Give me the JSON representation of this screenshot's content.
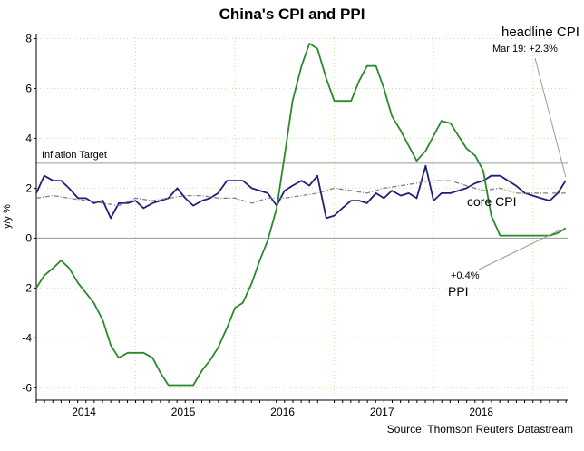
{
  "chart_data": {
    "type": "line",
    "title": "China's CPI and PPI",
    "ylabel": "y/y %",
    "xlabel": "",
    "ylim": [
      -6.5,
      8.2
    ],
    "yticks": [
      -6,
      -4,
      -2,
      0,
      2,
      4,
      6,
      8
    ],
    "x_start": 2013.62,
    "x_end": 2018.97,
    "xticks": [
      {
        "label": "2014",
        "pos": 2014.1
      },
      {
        "label": "2015",
        "pos": 2015.1
      },
      {
        "label": "2016",
        "pos": 2016.1
      },
      {
        "label": "2017",
        "pos": 2017.1
      },
      {
        "label": "2018",
        "pos": 2018.1
      }
    ],
    "year_gridlines": [
      2014.62,
      2015.62,
      2016.62,
      2017.62,
      2018.62
    ],
    "series": [
      {
        "name": "headline CPI",
        "color": "#1f1f7a",
        "style": "solid",
        "x": [
          2013.62,
          2013.7,
          2013.79,
          2013.87,
          2013.95,
          2014.04,
          2014.12,
          2014.2,
          2014.29,
          2014.37,
          2014.45,
          2014.54,
          2014.62,
          2014.7,
          2014.79,
          2014.87,
          2014.95,
          2015.04,
          2015.12,
          2015.2,
          2015.29,
          2015.37,
          2015.45,
          2015.54,
          2015.62,
          2015.7,
          2015.79,
          2015.87,
          2015.95,
          2016.04,
          2016.12,
          2016.2,
          2016.29,
          2016.37,
          2016.45,
          2016.54,
          2016.62,
          2016.7,
          2016.79,
          2016.87,
          2016.95,
          2017.04,
          2017.12,
          2017.2,
          2017.29,
          2017.37,
          2017.45,
          2017.54,
          2017.62,
          2017.7,
          2017.79,
          2017.87,
          2017.95,
          2018.04,
          2018.12,
          2018.2,
          2018.29,
          2018.37,
          2018.45,
          2018.54,
          2018.62,
          2018.7,
          2018.79,
          2018.87,
          2018.95
        ],
        "values": [
          1.8,
          2.5,
          2.3,
          2.3,
          2.0,
          1.6,
          1.6,
          1.4,
          1.5,
          0.8,
          1.4,
          1.4,
          1.5,
          1.2,
          1.4,
          1.5,
          1.6,
          2.0,
          1.6,
          1.3,
          1.5,
          1.6,
          1.8,
          2.3,
          2.3,
          2.3,
          2.0,
          1.9,
          1.8,
          1.3,
          1.9,
          2.1,
          2.3,
          2.1,
          2.5,
          0.8,
          0.9,
          1.2,
          1.5,
          1.5,
          1.4,
          1.8,
          1.6,
          1.9,
          1.7,
          1.8,
          1.6,
          2.9,
          1.5,
          1.8,
          1.8,
          1.9,
          2.0,
          2.2,
          2.3,
          2.5,
          2.5,
          2.3,
          2.1,
          1.8,
          1.7,
          1.6,
          1.5,
          1.8,
          2.3
        ]
      },
      {
        "name": "core CPI",
        "color": "#808080",
        "style": "dashdot",
        "x": [
          2013.62,
          2013.79,
          2013.95,
          2014.12,
          2014.29,
          2014.45,
          2014.62,
          2014.79,
          2014.95,
          2015.12,
          2015.29,
          2015.45,
          2015.62,
          2015.79,
          2015.95,
          2016.12,
          2016.29,
          2016.45,
          2016.62,
          2016.79,
          2016.95,
          2017.12,
          2017.29,
          2017.45,
          2017.62,
          2017.79,
          2017.95,
          2018.12,
          2018.29,
          2018.45,
          2018.62,
          2018.79,
          2018.95
        ],
        "values": [
          1.6,
          1.7,
          1.6,
          1.5,
          1.4,
          1.3,
          1.6,
          1.5,
          1.6,
          1.7,
          1.7,
          1.6,
          1.6,
          1.4,
          1.6,
          1.6,
          1.7,
          1.8,
          2.0,
          1.9,
          1.8,
          2.0,
          2.1,
          2.2,
          2.3,
          2.3,
          2.1,
          1.9,
          2.0,
          1.8,
          1.8,
          1.8,
          1.8
        ]
      },
      {
        "name": "PPI",
        "color": "#2a8a2a",
        "style": "solid",
        "x": [
          2013.62,
          2013.7,
          2013.79,
          2013.87,
          2013.95,
          2014.04,
          2014.12,
          2014.2,
          2014.29,
          2014.37,
          2014.45,
          2014.54,
          2014.62,
          2014.7,
          2014.79,
          2014.87,
          2014.95,
          2015.04,
          2015.12,
          2015.2,
          2015.29,
          2015.37,
          2015.45,
          2015.54,
          2015.62,
          2015.7,
          2015.79,
          2015.87,
          2015.95,
          2016.04,
          2016.12,
          2016.2,
          2016.29,
          2016.37,
          2016.45,
          2016.54,
          2016.62,
          2016.7,
          2016.79,
          2016.87,
          2016.95,
          2017.04,
          2017.12,
          2017.2,
          2017.29,
          2017.37,
          2017.45,
          2017.54,
          2017.62,
          2017.7,
          2017.79,
          2017.87,
          2017.95,
          2018.04,
          2018.12,
          2018.2,
          2018.29,
          2018.37,
          2018.45,
          2018.54,
          2018.62,
          2018.7,
          2018.79,
          2018.87,
          2018.95
        ],
        "values": [
          -2.0,
          -1.5,
          -1.2,
          -0.9,
          -1.2,
          -1.8,
          -2.2,
          -2.6,
          -3.3,
          -4.3,
          -4.8,
          -4.6,
          -4.6,
          -4.6,
          -4.8,
          -5.4,
          -5.9,
          -5.9,
          -5.9,
          -5.9,
          -5.3,
          -4.9,
          -4.4,
          -3.6,
          -2.8,
          -2.6,
          -1.8,
          -0.9,
          -0.1,
          1.2,
          3.3,
          5.5,
          6.9,
          7.8,
          7.6,
          6.4,
          5.5,
          5.5,
          5.5,
          6.3,
          6.9,
          6.9,
          6.0,
          4.9,
          4.3,
          3.7,
          3.1,
          3.5,
          4.1,
          4.7,
          4.6,
          4.1,
          3.6,
          3.3,
          2.7,
          0.9,
          0.1,
          0.1,
          0.1,
          0.1,
          0.1,
          0.1,
          0.1,
          0.2,
          0.4
        ]
      }
    ],
    "reference_lines": [
      {
        "label": "Inflation Target",
        "value": 3.0
      }
    ],
    "annotations": {
      "cpi_label": "headline CPI",
      "cpi_sub": "Mar 19: +2.3%",
      "core_label": "core CPI",
      "ppi_value": "+0.4%",
      "ppi_label": "PPI"
    },
    "source": "Source: Thomson Reuters Datastream"
  }
}
